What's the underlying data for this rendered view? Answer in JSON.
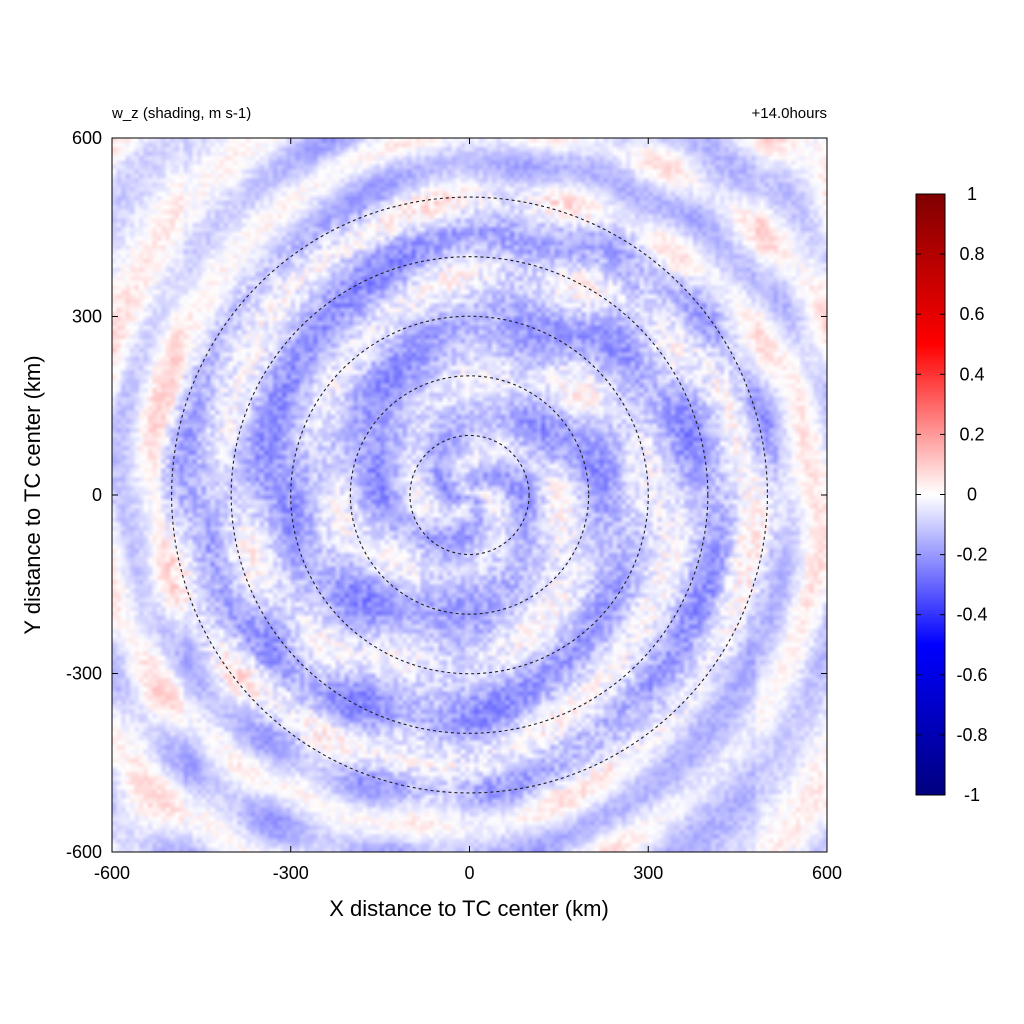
{
  "chart_data": {
    "type": "heatmap",
    "title_left": "w_z (shading, m s-1)",
    "title_right": "+14.0hours",
    "xlabel": "X distance to TC center (km)",
    "ylabel": "Y distance to TC center (km)",
    "xlim": [
      -600,
      600
    ],
    "ylim": [
      -600,
      600
    ],
    "x_ticks": [
      -600,
      -300,
      0,
      300,
      600
    ],
    "y_ticks": [
      -600,
      -300,
      0,
      300,
      600
    ],
    "x_tick_labels": [
      "-600",
      "-300",
      "0",
      "300",
      "600"
    ],
    "y_tick_labels": [
      "-600",
      "-300",
      "0",
      "300",
      "600"
    ],
    "colorbar": {
      "min": -1,
      "max": 1,
      "ticks": [
        1,
        0.8,
        0.6,
        0.4,
        0.2,
        0,
        -0.2,
        -0.4,
        -0.6,
        -0.8,
        -1
      ],
      "tick_labels": [
        "1",
        "0.8",
        "0.6",
        "0.4",
        "0.2",
        "0",
        "-0.2",
        "-0.4",
        "-0.6",
        "-0.8",
        "-1"
      ],
      "colors": [
        "#00007f",
        "#0000ff",
        "#ffffff",
        "#ff0000",
        "#7f0000"
      ]
    },
    "range_rings_km": [
      100,
      200,
      300,
      400,
      500
    ],
    "ring_style": "dashed",
    "field_range": [
      -0.45,
      0.3
    ],
    "grid": false
  }
}
